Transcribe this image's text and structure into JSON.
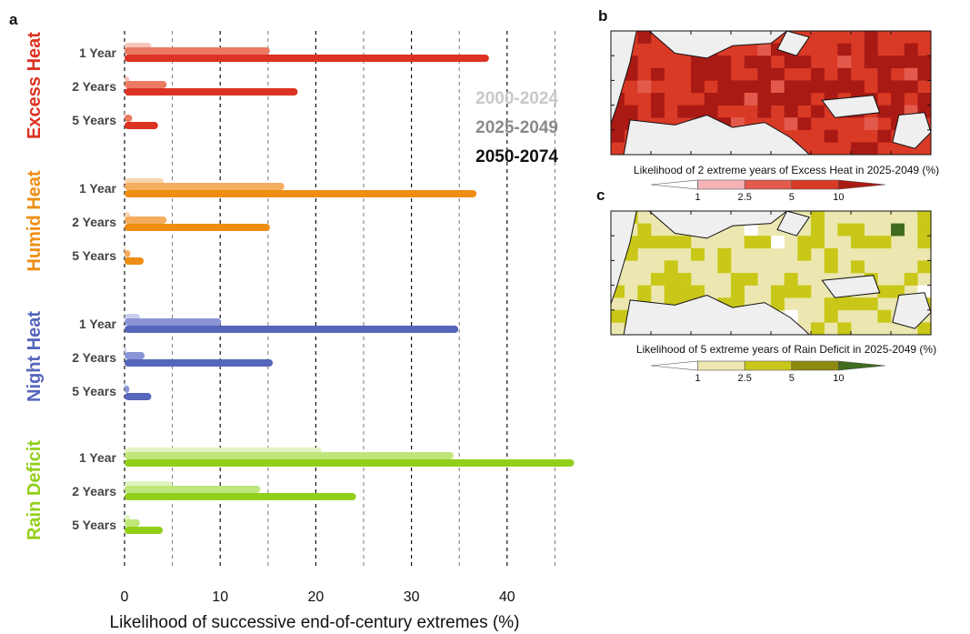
{
  "panels": {
    "a": "a",
    "b": "b",
    "c": "c"
  },
  "legend": {
    "periods": [
      {
        "label": "2000-2024",
        "color": "#c8c8c8"
      },
      {
        "label": "2025-2049",
        "color": "#8a8a8a"
      },
      {
        "label": "2050-2074",
        "color": "#111111"
      }
    ]
  },
  "chart_data": {
    "type": "bar",
    "orientation": "horizontal",
    "xlabel": "Likelihood of successive end-of-century extremes (%)",
    "xlim": [
      0,
      47
    ],
    "xticks": [
      0,
      10,
      20,
      30,
      40
    ],
    "grid_dashed": [
      0,
      5,
      10,
      15,
      20,
      25,
      30,
      35,
      40,
      45
    ],
    "row_labels": [
      "1 Year",
      "2 Years",
      "5 Years"
    ],
    "series_periods": [
      "2000-2024",
      "2025-2049",
      "2050-2074"
    ],
    "groups": [
      {
        "name": "Excess Heat",
        "colors": [
          "#f7c6b8",
          "#ec7a63",
          "#dc3222"
        ],
        "rows": [
          {
            "label": "1 Year",
            "values": [
              2.8,
              15.2,
              38.1
            ]
          },
          {
            "label": "2 Years",
            "values": [
              0.5,
              4.4,
              18.1
            ]
          },
          {
            "label": "5 Years",
            "values": [
              0.1,
              0.8,
              3.5
            ]
          }
        ]
      },
      {
        "name": "Humid Heat",
        "colors": [
          "#fad5ad",
          "#f4ad5e",
          "#ee8d12"
        ],
        "rows": [
          {
            "label": "1 Year",
            "values": [
              4.1,
              16.7,
              36.8
            ]
          },
          {
            "label": "2 Years",
            "values": [
              0.6,
              4.4,
              15.2
            ]
          },
          {
            "label": "5 Years",
            "values": [
              0.1,
              0.6,
              2.0
            ]
          }
        ]
      },
      {
        "name": "Night Heat",
        "colors": [
          "#c8cdec",
          "#8a95d8",
          "#5566bb"
        ],
        "rows": [
          {
            "label": "1 Year",
            "values": [
              1.6,
              10.1,
              34.9
            ]
          },
          {
            "label": "2 Years",
            "values": [
              0.2,
              2.1,
              15.5
            ]
          },
          {
            "label": "5 Years",
            "values": [
              0.05,
              0.5,
              2.8
            ]
          }
        ]
      },
      {
        "name": "Rain Deficit",
        "colors": [
          "#e3f4c2",
          "#bfe67a",
          "#92cf1a"
        ],
        "rows": [
          {
            "label": "1 Year",
            "values": [
              20.6,
              34.4,
              47.0
            ]
          },
          {
            "label": "2 Years",
            "values": [
              5.0,
              14.2,
              24.2
            ]
          },
          {
            "label": "5 Years",
            "values": [
              0.6,
              1.6,
              4.0
            ]
          }
        ]
      }
    ]
  },
  "maps": [
    {
      "id": "b",
      "caption": "Likelihood of 2 extreme years of Excess Heat in 2025-2049 (%)",
      "colorbar": {
        "ticks": [
          "1",
          "2.5",
          "5",
          "10"
        ],
        "colors": [
          "#ffffff",
          "#f6b4b8",
          "#e35a4c",
          "#d93a26",
          "#aa1a14"
        ]
      },
      "grid_colors": {
        "base": "#d93a26",
        "dark": "#aa1a14",
        "light": "#e35a4c",
        "land_bg": "#efefef"
      }
    },
    {
      "id": "c",
      "caption": "Likelihood of 5 extreme years of Rain Deficit in 2025-2049 (%)",
      "colorbar": {
        "ticks": [
          "1",
          "2.5",
          "5",
          "10"
        ],
        "colors": [
          "#ffffff",
          "#ece7b0",
          "#c9c718",
          "#8e8a10",
          "#3f6b1e"
        ]
      },
      "grid_colors": {
        "base": "#ece7b0",
        "mid": "#c9c718",
        "dark": "#3f6b1e",
        "land_bg": "#efefef"
      }
    }
  ]
}
